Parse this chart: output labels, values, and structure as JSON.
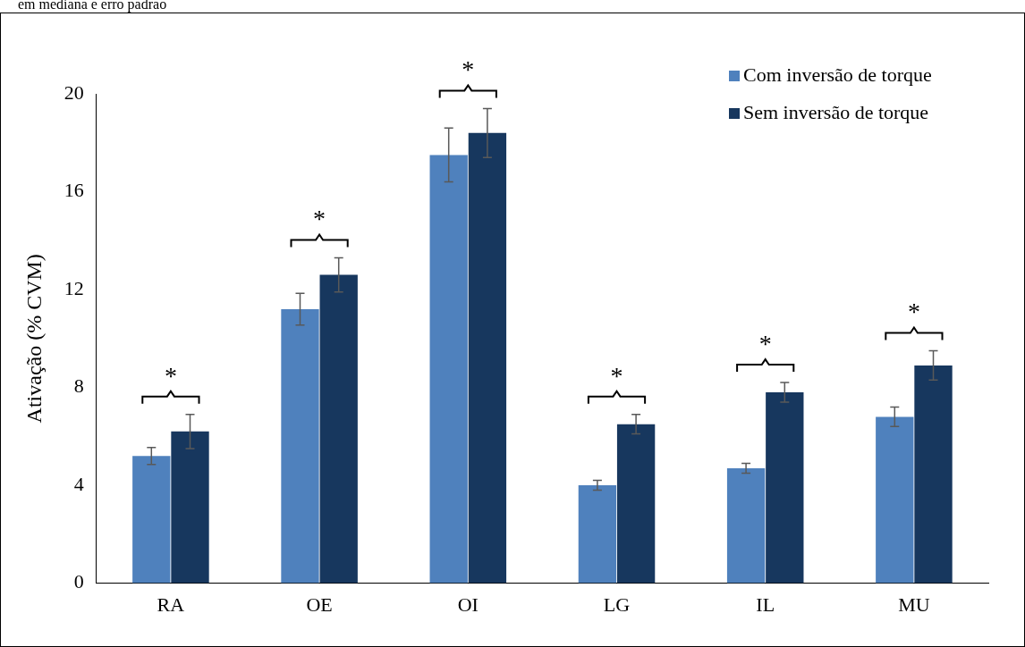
{
  "chart_data": {
    "type": "bar",
    "ylabel": "Ativação (% CVM)",
    "categories": [
      "RA",
      "OE",
      "OI",
      "LG",
      "IL",
      "MU"
    ],
    "series": [
      {
        "name": "Com inversão de torque",
        "color": "#4f81bd",
        "values": [
          5.2,
          11.2,
          17.5,
          4.0,
          4.7,
          6.8
        ],
        "errors": [
          0.35,
          0.65,
          1.1,
          0.2,
          0.2,
          0.4
        ]
      },
      {
        "name": "Sem inversão de torque",
        "color": "#17375e",
        "values": [
          6.2,
          12.6,
          18.4,
          6.5,
          7.8,
          8.9
        ],
        "errors": [
          0.7,
          0.7,
          1.0,
          0.4,
          0.4,
          0.6
        ]
      }
    ],
    "ylim": [
      0,
      20
    ],
    "yticks": [
      0,
      4,
      8,
      12,
      16,
      20
    ],
    "grid": false,
    "legend": "top right",
    "annotations": [
      "em mediana e erro padrão",
      "*",
      "*",
      "*",
      "*",
      "*",
      "*"
    ]
  }
}
